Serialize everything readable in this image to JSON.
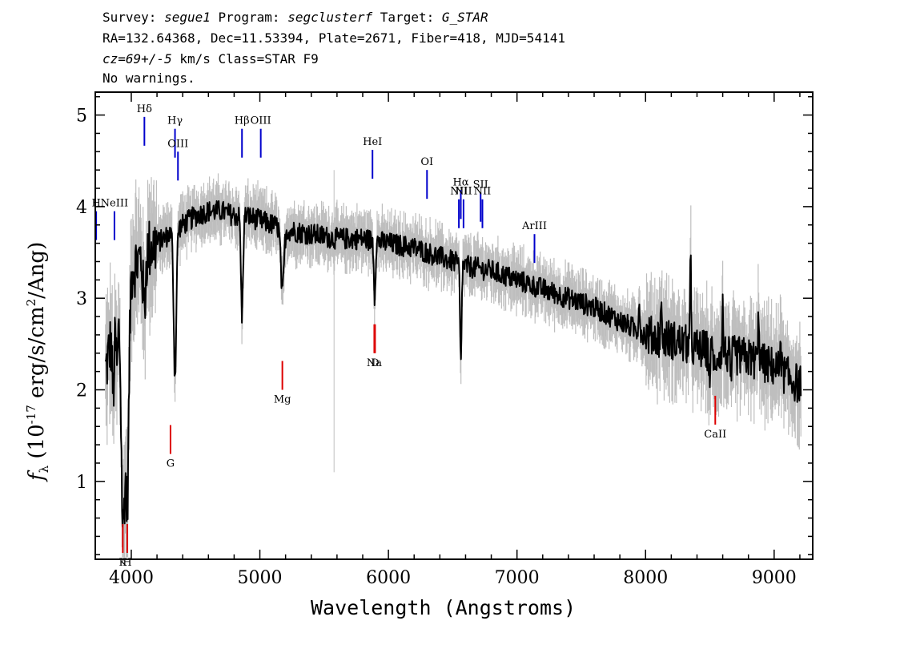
{
  "header": {
    "survey_label": "Survey: ",
    "survey": "segue1",
    "program_label": " Program: ",
    "program": "segclusterf",
    "target_label": " Target: ",
    "target": "G_STAR",
    "line2": "RA=132.64368, Dec=11.53394, Plate=2671, Fiber=418, MJD=54141",
    "cz": "cz=69+/-5",
    "cz_rest": " km/s Class=STAR F9",
    "line4": "No warnings."
  },
  "chart_data": {
    "type": "line",
    "xlabel": "Wavelength (Angstroms)",
    "ylabel_prefix": "f",
    "ylabel_sub": "λ",
    "ylabel_main": " (10",
    "ylabel_exp": "-17",
    "ylabel_unit": " erg/s/cm",
    "ylabel_exp2": "2",
    "ylabel_end": "/Ang)",
    "xlim": [
      3720,
      9300
    ],
    "ylim": [
      0.15,
      5.25
    ],
    "x_ticks": [
      4000,
      5000,
      6000,
      7000,
      8000,
      9000
    ],
    "y_ticks": [
      1,
      2,
      3,
      4,
      5
    ],
    "colors": {
      "spectrum": "#000000",
      "error": "#bebebe",
      "emission": "#0000cc",
      "absorption": "#dd0000",
      "other": "#000000"
    },
    "continuum": [
      [
        3800,
        2.2
      ],
      [
        3850,
        2.6
      ],
      [
        3900,
        2.9
      ],
      [
        3950,
        2.2
      ],
      [
        4000,
        3.3
      ],
      [
        4100,
        3.5
      ],
      [
        4200,
        3.6
      ],
      [
        4300,
        3.7
      ],
      [
        4400,
        3.8
      ],
      [
        4500,
        3.9
      ],
      [
        4600,
        3.95
      ],
      [
        4700,
        3.95
      ],
      [
        4800,
        3.9
      ],
      [
        4900,
        3.9
      ],
      [
        5000,
        3.85
      ],
      [
        5200,
        3.75
      ],
      [
        5400,
        3.7
      ],
      [
        5600,
        3.65
      ],
      [
        5800,
        3.65
      ],
      [
        6000,
        3.6
      ],
      [
        6200,
        3.55
      ],
      [
        6400,
        3.45
      ],
      [
        6600,
        3.35
      ],
      [
        6800,
        3.3
      ],
      [
        7000,
        3.2
      ],
      [
        7200,
        3.1
      ],
      [
        7400,
        3.0
      ],
      [
        7600,
        2.9
      ],
      [
        7800,
        2.75
      ],
      [
        8000,
        2.6
      ],
      [
        8200,
        2.55
      ],
      [
        8400,
        2.45
      ],
      [
        8600,
        2.4
      ],
      [
        8800,
        2.35
      ],
      [
        9000,
        2.25
      ],
      [
        9200,
        2.05
      ]
    ],
    "absorption_features": [
      [
        3934,
        1.9,
        12
      ],
      [
        3969,
        1.8,
        12
      ],
      [
        3860,
        0.7,
        8
      ],
      [
        3890,
        0.6,
        8
      ],
      [
        4101,
        0.6,
        10
      ],
      [
        4340,
        1.6,
        10
      ],
      [
        4861,
        1.1,
        8
      ],
      [
        5175,
        0.7,
        12
      ],
      [
        5893,
        0.6,
        6
      ],
      [
        6563,
        1.1,
        6
      ],
      [
        8498,
        0.25,
        6
      ],
      [
        8542,
        0.3,
        6
      ],
      [
        8662,
        0.3,
        6
      ]
    ],
    "spikes": [
      [
        8350,
        0.9
      ],
      [
        8120,
        0.4
      ],
      [
        8600,
        0.5
      ],
      [
        8880,
        0.6
      ],
      [
        7950,
        0.4
      ],
      [
        9050,
        0.5
      ]
    ],
    "emission_lines": [
      {
        "label": "H",
        "x": 3727,
        "y": 3.95
      },
      {
        "label": "NeIII",
        "x": 3869,
        "y": 3.95
      },
      {
        "label": "Hδ",
        "x": 4102,
        "y": 4.98
      },
      {
        "label": "Hγ",
        "x": 4340,
        "y": 4.85
      },
      {
        "label": "OIII",
        "x": 4363,
        "y": 4.6
      },
      {
        "label": "Hβ",
        "x": 4861,
        "y": 4.85
      },
      {
        "label": "OIII",
        "x": 5007,
        "y": 4.85
      },
      {
        "label": "HeI",
        "x": 5876,
        "y": 4.62
      },
      {
        "label": "OI",
        "x": 6300,
        "y": 4.4
      },
      {
        "label": "NII",
        "x": 6548,
        "y": 4.08
      },
      {
        "label": "Hα",
        "x": 6563,
        "y": 4.18
      },
      {
        "label": "NII",
        "x": 6584,
        "y": 4.08
      },
      {
        "label": "SII",
        "x": 6717,
        "y": 4.15
      },
      {
        "label": "NII",
        "x": 6731,
        "y": 4.08
      },
      {
        "label": "ArIII",
        "x": 7136,
        "y": 3.7
      }
    ],
    "absorption_lines": [
      {
        "label": "K",
        "x": 3934,
        "y": 0.22
      },
      {
        "label": "H",
        "x": 3969,
        "y": 0.22
      },
      {
        "label": "G",
        "x": 4305,
        "y": 1.3
      },
      {
        "label": "Mg",
        "x": 5175,
        "y": 2.0
      },
      {
        "label": "Na",
        "x": 5890,
        "y": 2.4
      },
      {
        "label": "D",
        "x": 5896,
        "y": 2.4
      },
      {
        "label": "CaII",
        "x": 8542,
        "y": 1.62
      }
    ]
  }
}
